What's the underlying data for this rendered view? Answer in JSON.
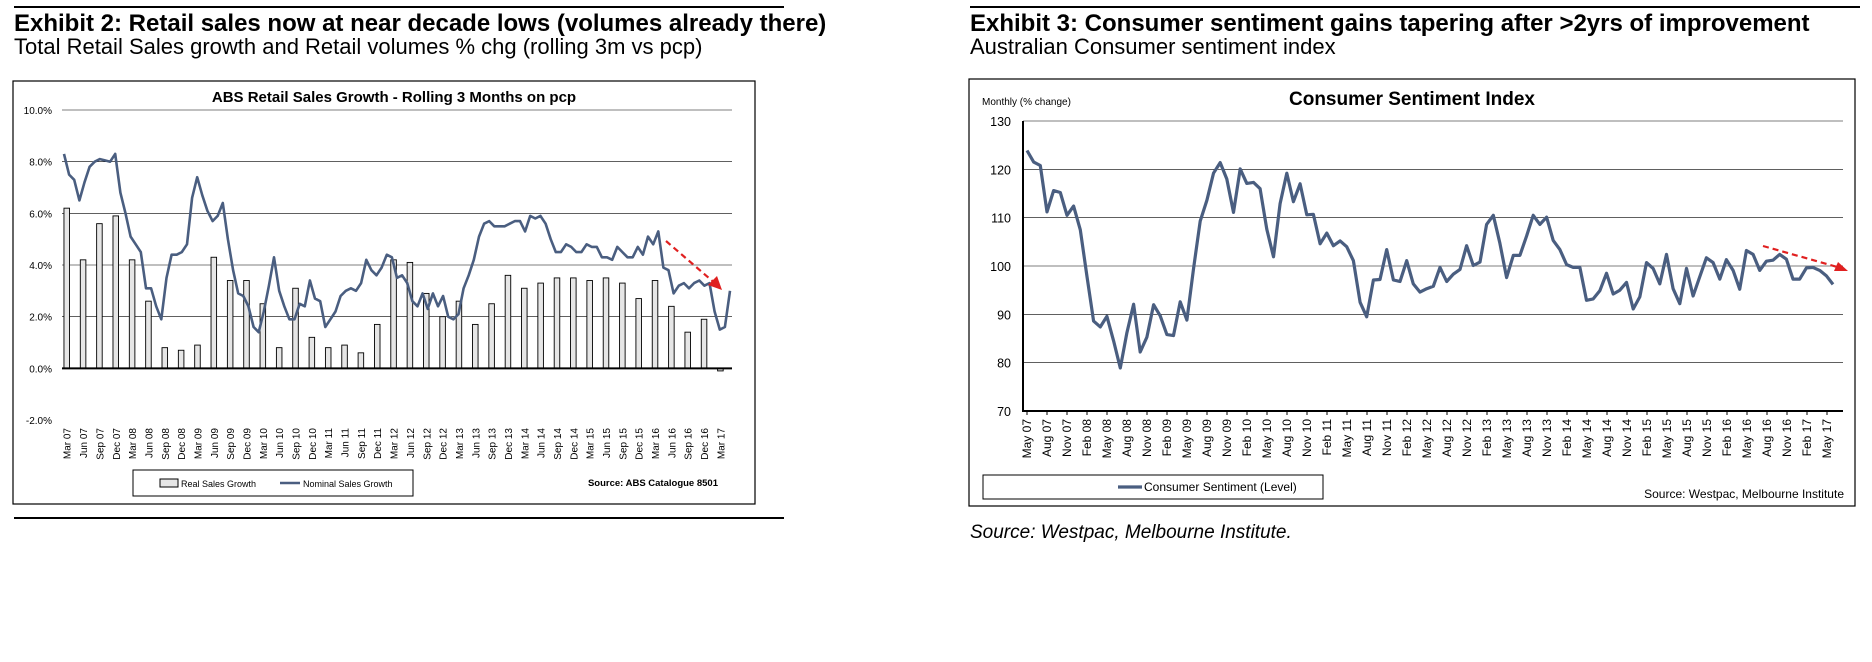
{
  "exhibits": [
    {
      "heading": "Exhibit 2: Retail sales now at near decade lows (volumes already there)",
      "subheading": "Total Retail Sales growth and Retail volumes % chg (rolling 3m vs pcp)"
    },
    {
      "heading": "Exhibit 3: Consumer sentiment gains tapering after >2yrs of improvement",
      "subheading": "Australian Consumer sentiment index",
      "source_note": "Source: Westpac, Melbourne Institute."
    }
  ],
  "chart_data": [
    {
      "type": "bar",
      "title": "ABS Retail Sales Growth - Rolling 3 Months on pcp",
      "xlabel": "",
      "ylabel": "",
      "ylim": [
        -2.0,
        10.0
      ],
      "yticks": [
        "10.0%",
        "8.0%",
        "6.0%",
        "4.0%",
        "2.0%",
        "0.0%",
        "-2.0%"
      ],
      "xticks": [
        "Mar 07",
        "Jun 07",
        "Sep 07",
        "Dec 07",
        "Mar 08",
        "Jun 08",
        "Sep 08",
        "Dec 08",
        "Mar 09",
        "Jun 09",
        "Sep 09",
        "Dec 09",
        "Mar 10",
        "Jun 10",
        "Sep 10",
        "Dec 10",
        "Mar 11",
        "Jun 11",
        "Sep 11",
        "Dec 11",
        "Mar 12",
        "Jun 12",
        "Sep 12",
        "Dec 12",
        "Mar 13",
        "Jun 13",
        "Sep 13",
        "Dec 13",
        "Mar 14",
        "Jun 14",
        "Sep 14",
        "Dec 14",
        "Mar 15",
        "Jun 15",
        "Sep 15",
        "Dec 15",
        "Mar 16",
        "Jun 16",
        "Sep 16",
        "Dec 16",
        "Mar 17"
      ],
      "series": [
        {
          "name": "Real Sales Growth",
          "kind": "bar",
          "values": [
            6.2,
            4.2,
            5.6,
            5.9,
            4.2,
            2.6,
            0.8,
            0.7,
            0.9,
            4.3,
            3.4,
            3.4,
            2.5,
            0.8,
            3.1,
            1.2,
            0.8,
            0.9,
            0.6,
            1.7,
            4.2,
            4.1,
            2.9,
            2.0,
            2.6,
            1.7,
            2.5,
            3.6,
            3.1,
            3.3,
            3.5,
            3.5,
            3.4,
            3.5,
            3.3,
            2.7,
            3.4,
            2.4,
            1.4,
            1.9,
            -0.1
          ]
        },
        {
          "name": "Nominal Sales Growth",
          "kind": "line",
          "values": [
            8.3,
            7.5,
            7.3,
            6.5,
            7.2,
            7.8,
            8.0,
            8.1,
            8.05,
            8.0,
            8.3,
            6.8,
            6.0,
            5.1,
            4.8,
            4.5,
            3.1,
            3.1,
            2.4,
            1.9,
            3.5,
            4.4,
            4.4,
            4.5,
            4.8,
            6.6,
            7.4,
            6.7,
            6.1,
            5.7,
            5.9,
            6.4,
            5.0,
            3.8,
            2.9,
            2.8,
            2.4,
            1.6,
            1.4,
            2.2,
            3.2,
            4.3,
            3.0,
            2.4,
            1.9,
            1.9,
            2.5,
            2.4,
            3.4,
            2.7,
            2.6,
            1.6,
            1.9,
            2.2,
            2.8,
            3.0,
            3.1,
            3.0,
            3.3,
            4.2,
            3.8,
            3.6,
            3.9,
            4.4,
            4.3,
            3.5,
            3.6,
            3.3,
            2.6,
            2.4,
            2.9,
            2.3,
            2.9,
            2.4,
            2.8,
            2.0,
            1.9,
            2.1,
            3.1,
            3.6,
            4.2,
            5.1,
            5.6,
            5.7,
            5.5,
            5.5,
            5.5,
            5.6,
            5.7,
            5.7,
            5.3,
            5.9,
            5.8,
            5.9,
            5.6,
            5.0,
            4.5,
            4.5,
            4.8,
            4.7,
            4.5,
            4.5,
            4.8,
            4.7,
            4.7,
            4.3,
            4.3,
            4.2,
            4.7,
            4.5,
            4.3,
            4.3,
            4.7,
            4.4,
            5.1,
            4.8,
            5.3,
            3.9,
            3.8,
            2.9,
            3.2,
            3.3,
            3.1,
            3.3,
            3.4,
            3.2,
            3.3,
            2.2,
            1.5,
            1.6,
            3.0
          ]
        }
      ],
      "legend": [
        "Real Sales Growth",
        "Nominal Sales Growth"
      ],
      "legend_position": "bottom-left",
      "source": "Source: ABS Catalogue 8501",
      "annotation": "red dashed downward trend arrow",
      "colors": {
        "line": "#4a5e80",
        "bar_fill": "#e6e6e6",
        "bar_edge": "#000000",
        "arrow": "#e02020",
        "grid": "#000000"
      }
    },
    {
      "type": "line",
      "title": "Consumer Sentiment Index",
      "ylabel": "Monthly (% change)",
      "xlabel": "",
      "ylim": [
        70,
        130
      ],
      "yticks": [
        "130",
        "120",
        "110",
        "100",
        "90",
        "80",
        "70"
      ],
      "xticks": [
        "May 07",
        "Aug 07",
        "Nov 07",
        "Feb 08",
        "May 08",
        "Aug 08",
        "Nov 08",
        "Feb 09",
        "May 09",
        "Aug 09",
        "Nov 09",
        "Feb 10",
        "May 10",
        "Aug 10",
        "Nov 10",
        "Feb 11",
        "May 11",
        "Aug 11",
        "Nov 11",
        "Feb 12",
        "May 12",
        "Aug 12",
        "Nov 12",
        "Feb 13",
        "May 13",
        "Aug 13",
        "Nov 13",
        "Feb 14",
        "May 14",
        "Aug 14",
        "Nov 14",
        "Feb 15",
        "May 15",
        "Aug 15",
        "Nov 15",
        "Feb 16",
        "May 16",
        "Aug 16",
        "Nov 16",
        "Feb 17",
        "May 17"
      ],
      "series": [
        {
          "name": "Consumer Sentiment (Level)",
          "values": [
            123.9,
            121.5,
            120.8,
            111.2,
            115.6,
            115.2,
            110.5,
            112.4,
            107.5,
            97.8,
            88.6,
            87.4,
            89.6,
            84.5,
            78.9,
            86.2,
            92.1,
            82.2,
            85.3,
            92.0,
            89.7,
            85.8,
            85.6,
            92.6,
            88.8,
            99.4,
            109.3,
            113.6,
            119.2,
            121.4,
            118.0,
            111.1,
            120.1,
            117.1,
            117.3,
            116.0,
            107.6,
            101.9,
            112.9,
            119.2,
            113.3,
            117.0,
            110.6,
            110.7,
            104.6,
            106.8,
            104.2,
            105.2,
            104.0,
            101.1,
            92.5,
            89.5,
            97.1,
            97.2,
            103.4,
            97.1,
            96.8,
            101.1,
            96.3,
            94.6,
            95.3,
            95.8,
            99.7,
            96.8,
            98.3,
            99.3,
            104.2,
            100.1,
            100.8,
            108.6,
            110.5,
            104.7,
            97.6,
            102.2,
            102.2,
            106.2,
            110.5,
            108.6,
            110.1,
            105.3,
            103.4,
            100.3,
            99.7,
            99.7,
            92.9,
            93.2,
            94.9,
            98.5,
            94.2,
            95.0,
            96.6,
            91.1,
            93.6,
            100.7,
            99.5,
            96.3,
            102.4,
            95.3,
            92.2,
            99.5,
            93.8,
            97.8,
            101.7,
            100.7,
            97.3,
            101.3,
            99.1,
            95.2,
            103.2,
            102.4,
            99.1,
            101.0,
            101.2,
            102.4,
            101.4,
            97.3,
            97.3,
            99.6,
            99.7,
            99.1,
            98.0,
            96.2
          ]
        }
      ],
      "legend": [
        "Consumer Sentiment (Level)"
      ],
      "legend_position": "bottom-left",
      "source": "Source: Westpac, Melbourne Institute",
      "annotation": "red dashed downward trend arrow",
      "colors": {
        "line": "#4a5e80",
        "arrow": "#e02020"
      }
    }
  ]
}
